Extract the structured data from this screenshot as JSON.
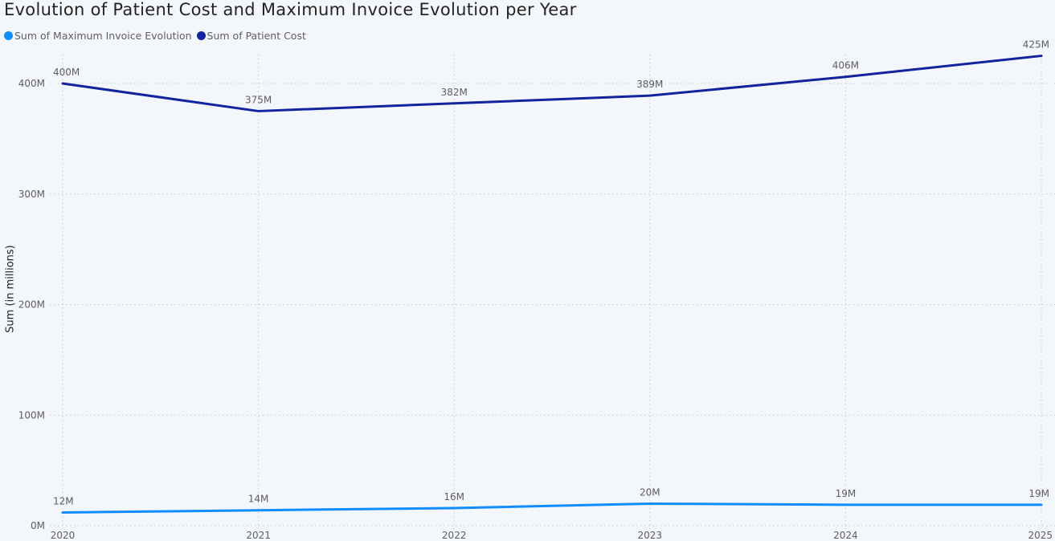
{
  "chart_data": {
    "type": "line",
    "title": "Evolution of Patient Cost and Maximum Invoice Evolution per Year",
    "xlabel": "",
    "ylabel": "Sum (in millions)",
    "x": [
      "2020",
      "2021",
      "2022",
      "2023",
      "2024",
      "2025"
    ],
    "ylim": [
      0,
      425
    ],
    "yticks": [
      0,
      100,
      200,
      300,
      400
    ],
    "ytick_labels": [
      "0M",
      "100M",
      "200M",
      "300M",
      "400M"
    ],
    "grid": true,
    "legend_position": "top-left",
    "series": [
      {
        "name": "Sum of Maximum Invoice Evolution",
        "color": "#118dff",
        "values": [
          12,
          14,
          16,
          20,
          19,
          19
        ],
        "labels": [
          "12M",
          "14M",
          "16M",
          "20M",
          "19M",
          "19M"
        ]
      },
      {
        "name": "Sum of Patient Cost",
        "color": "#12239e",
        "values": [
          400,
          375,
          382,
          389,
          406,
          425
        ],
        "labels": [
          "400M",
          "375M",
          "382M",
          "389M",
          "406M",
          "425M"
        ]
      }
    ]
  }
}
